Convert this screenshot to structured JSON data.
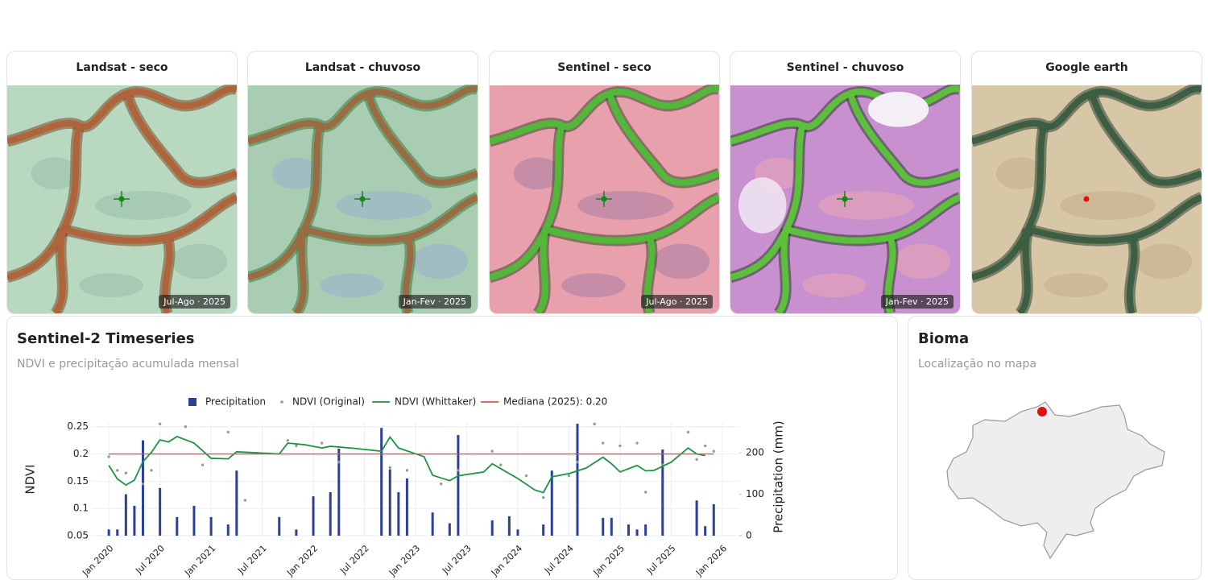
{
  "panels": [
    {
      "title": "Landsat - seco",
      "badge": "Jul-Ago · 2025"
    },
    {
      "title": "Landsat - chuvoso",
      "badge": "Jan-Fev · 2025"
    },
    {
      "title": "Sentinel - seco",
      "badge": "Jul-Ago · 2025"
    },
    {
      "title": "Sentinel - chuvoso",
      "badge": "Jan-Fev · 2025"
    },
    {
      "title": "Google earth"
    }
  ],
  "timeseries_card": {
    "title": "Sentinel-2 Timeseries",
    "subtitle": "NDVI e precipitação acumulada mensal"
  },
  "biome_card": {
    "title": "Bioma",
    "subtitle": "Localização no mapa"
  },
  "chart_data": {
    "type": "combo",
    "ylabel": "NDVI",
    "y2label": "Precipitation (mm)",
    "grid": true,
    "xlim": [
      "2019-11",
      "2026-03"
    ],
    "xticks": [
      {
        "value": "2020-01",
        "label": "Jan 2020"
      },
      {
        "value": "2020-07",
        "label": "Jul 2020"
      },
      {
        "value": "2021-01",
        "label": "Jan 2021"
      },
      {
        "value": "2021-07",
        "label": "Jul 2021"
      },
      {
        "value": "2022-01",
        "label": "Jan 2022"
      },
      {
        "value": "2022-07",
        "label": "Jul 2022"
      },
      {
        "value": "2023-01",
        "label": "Jan 2023"
      },
      {
        "value": "2023-07",
        "label": "Jul 2023"
      },
      {
        "value": "2024-01",
        "label": "Jan 2024"
      },
      {
        "value": "2024-07",
        "label": "Jul 2024"
      },
      {
        "value": "2025-01",
        "label": "Jan 2025"
      },
      {
        "value": "2025-07",
        "label": "Jul 2025"
      },
      {
        "value": "2026-01",
        "label": "Jan 2026"
      }
    ],
    "ylim": [
      0.05,
      0.257
    ],
    "yticks": [
      0.05,
      0.1,
      0.15,
      0.2,
      0.25
    ],
    "y2lim": [
      0,
      272
    ],
    "y2ticks": [
      0,
      100,
      200
    ],
    "series": [
      {
        "name": "Precipitation",
        "type": "bar",
        "axis": "y2",
        "color": "#2c3f99",
        "x": [
          "2020-01",
          "2020-02",
          "2020-03",
          "2020-04",
          "2020-05",
          "2020-07",
          "2020-09",
          "2020-11",
          "2021-01",
          "2021-03",
          "2021-04",
          "2021-09",
          "2021-11",
          "2022-01",
          "2022-03",
          "2022-04",
          "2022-09",
          "2022-10",
          "2022-11",
          "2022-12",
          "2023-03",
          "2023-05",
          "2023-06",
          "2023-10",
          "2023-12",
          "2024-01",
          "2024-04",
          "2024-05",
          "2024-08",
          "2024-11",
          "2024-12",
          "2025-02",
          "2025-03",
          "2025-04",
          "2025-06",
          "2025-10",
          "2025-11",
          "2025-12"
        ],
        "values": [
          15,
          15,
          100,
          72,
          230,
          115,
          45,
          72,
          45,
          27,
          157,
          45,
          15,
          95,
          105,
          210,
          260,
          160,
          105,
          138,
          56,
          30,
          243,
          37,
          47,
          15,
          27,
          157,
          270,
          43,
          43,
          27,
          15,
          27,
          208,
          85,
          23,
          76
        ]
      },
      {
        "name": "NDVI (Original)",
        "type": "scatter",
        "color": "#999999",
        "x": [
          "2020-01",
          "2020-02",
          "2020-03",
          "2020-05",
          "2020-06",
          "2020-07",
          "2020-10",
          "2020-12",
          "2021-03",
          "2021-05",
          "2021-10",
          "2021-11",
          "2022-02",
          "2022-04",
          "2022-10",
          "2022-12",
          "2023-04",
          "2023-06",
          "2023-10",
          "2023-11",
          "2024-02",
          "2024-04",
          "2024-07",
          "2024-08",
          "2024-10",
          "2024-11",
          "2025-01",
          "2025-03",
          "2025-04",
          "2025-06",
          "2025-09",
          "2025-10",
          "2025-11",
          "2025-12"
        ],
        "values": [
          0.195,
          0.17,
          0.165,
          0.145,
          0.17,
          0.255,
          0.25,
          0.18,
          0.24,
          0.115,
          0.225,
          0.215,
          0.22,
          0.185,
          0.175,
          0.17,
          0.145,
          0.17,
          0.205,
          0.18,
          0.16,
          0.12,
          0.16,
          0.185,
          0.255,
          0.22,
          0.215,
          0.22,
          0.13,
          0.18,
          0.24,
          0.19,
          0.215,
          0.205
        ]
      },
      {
        "name": "NDVI (Whittaker)",
        "type": "line",
        "color": "#1a9641",
        "x": [
          "2020-01",
          "2020-02",
          "2020-03",
          "2020-04",
          "2020-05",
          "2020-06",
          "2020-07",
          "2020-08",
          "2020-09",
          "2020-10",
          "2020-11",
          "2021-01",
          "2021-03",
          "2021-04",
          "2021-09",
          "2021-10",
          "2021-12",
          "2022-02",
          "2022-03",
          "2022-06",
          "2022-09",
          "2022-10",
          "2022-11",
          "2023-02",
          "2023-03",
          "2023-05",
          "2023-06",
          "2023-09",
          "2023-10",
          "2023-11",
          "2024-01",
          "2024-03",
          "2024-04",
          "2024-05",
          "2024-07",
          "2024-09",
          "2024-11",
          "2024-12",
          "2025-01",
          "2025-03",
          "2025-04",
          "2025-05",
          "2025-07",
          "2025-09",
          "2025-10",
          "2025-11"
        ],
        "values": [
          0.179,
          0.154,
          0.143,
          0.152,
          0.186,
          0.203,
          0.226,
          0.222,
          0.232,
          0.226,
          0.22,
          0.192,
          0.191,
          0.204,
          0.2,
          0.22,
          0.217,
          0.211,
          0.214,
          0.21,
          0.205,
          0.231,
          0.211,
          0.195,
          0.161,
          0.151,
          0.16,
          0.167,
          0.182,
          0.173,
          0.155,
          0.134,
          0.129,
          0.158,
          0.164,
          0.174,
          0.194,
          0.182,
          0.167,
          0.179,
          0.169,
          0.17,
          0.185,
          0.211,
          0.2,
          0.197
        ]
      },
      {
        "name": "Mediana (2025): 0.20",
        "type": "hline",
        "color": "#e05252",
        "values": [
          0.2
        ]
      }
    ]
  }
}
